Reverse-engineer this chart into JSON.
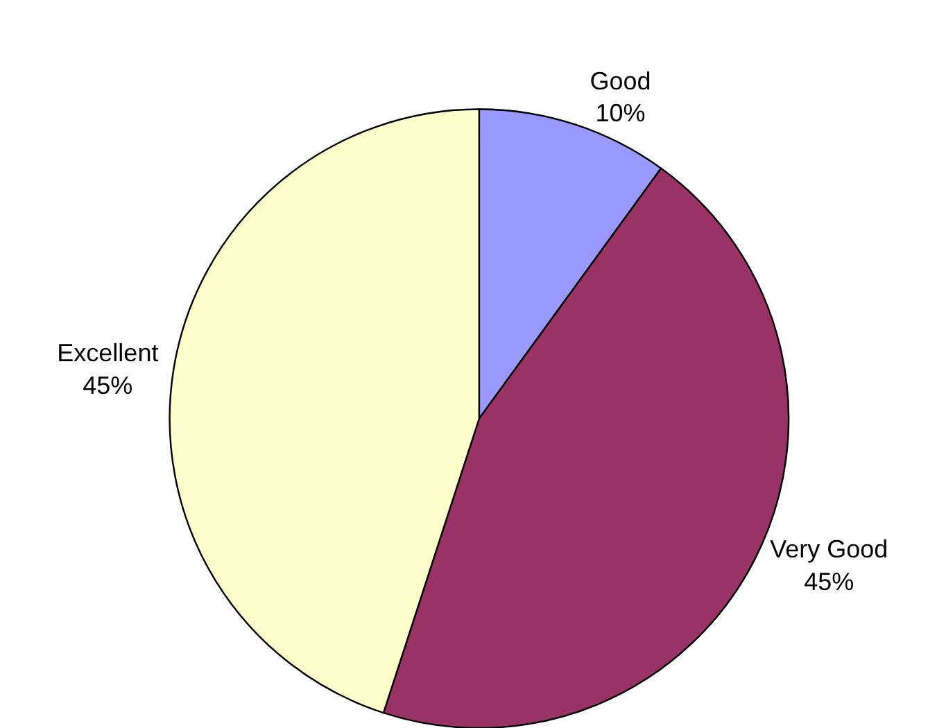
{
  "chart_data": {
    "type": "pie",
    "categories": [
      "Good",
      "Very Good",
      "Excellent"
    ],
    "values": [
      10,
      45,
      45
    ],
    "colors": [
      "#9999ff",
      "#993366",
      "#ffffcc"
    ],
    "value_labels": [
      "10%",
      "45%",
      "45%"
    ]
  }
}
